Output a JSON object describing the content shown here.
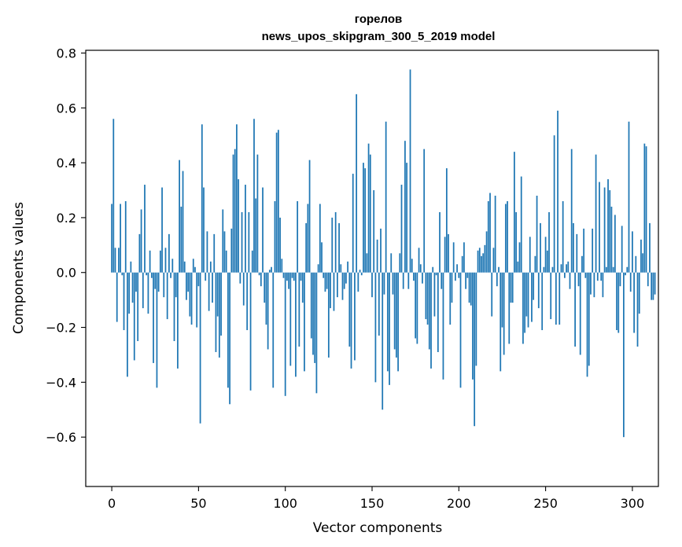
{
  "chart_data": {
    "type": "bar",
    "title_line1": "горелов",
    "title_line2": "news_upos_skipgram_300_5_2019 model",
    "xlabel": "Vector components",
    "ylabel": "Components values",
    "xlim": [
      -15,
      315
    ],
    "ylim": [
      -0.78,
      0.81
    ],
    "xticks": [
      0,
      50,
      100,
      150,
      200,
      250,
      300
    ],
    "yticks": [
      -0.6,
      -0.4,
      -0.2,
      0.0,
      0.2,
      0.4,
      0.6,
      0.8
    ],
    "ytick_labels": [
      "−0.6",
      "−0.4",
      "−0.2",
      "0.0",
      "0.2",
      "0.4",
      "0.6",
      "0.8"
    ],
    "bar_color": "#1f77b4",
    "values": [
      0.25,
      0.56,
      0.09,
      -0.18,
      0.09,
      0.25,
      -0.01,
      -0.21,
      0.26,
      -0.38,
      -0.15,
      0.04,
      -0.11,
      -0.32,
      -0.07,
      -0.25,
      0.14,
      0.23,
      -0.13,
      0.32,
      -0.01,
      -0.15,
      0.08,
      -0.02,
      -0.33,
      -0.06,
      -0.42,
      -0.07,
      0.08,
      0.31,
      -0.09,
      0.09,
      -0.17,
      0.14,
      -0.02,
      0.05,
      -0.25,
      -0.09,
      -0.35,
      0.41,
      0.24,
      0.37,
      0.04,
      -0.1,
      -0.07,
      -0.16,
      -0.19,
      0.05,
      0.02,
      -0.2,
      -0.05,
      -0.55,
      0.54,
      0.31,
      -0.03,
      0.15,
      -0.14,
      0.04,
      -0.11,
      0.14,
      -0.29,
      -0.16,
      -0.31,
      -0.23,
      0.23,
      0.15,
      0.08,
      -0.42,
      -0.48,
      0.16,
      0.43,
      0.45,
      0.54,
      0.34,
      -0.04,
      0.22,
      -0.12,
      0.32,
      -0.21,
      0.22,
      -0.43,
      0.08,
      0.56,
      0.27,
      0.43,
      -0.01,
      -0.05,
      0.31,
      -0.11,
      -0.19,
      -0.28,
      0.01,
      0.02,
      -0.42,
      0.26,
      0.51,
      0.52,
      0.2,
      0.05,
      -0.02,
      -0.45,
      -0.03,
      -0.06,
      -0.34,
      -0.02,
      -0.03,
      -0.38,
      0.26,
      -0.27,
      -0.03,
      -0.11,
      -0.36,
      0.18,
      0.25,
      0.41,
      -0.24,
      -0.3,
      -0.33,
      -0.44,
      0.03,
      0.25,
      0.11,
      -0.02,
      -0.07,
      -0.06,
      -0.31,
      -0.13,
      0.2,
      -0.14,
      0.22,
      -0.09,
      0.18,
      0.03,
      -0.1,
      -0.06,
      -0.04,
      0.04,
      -0.27,
      -0.35,
      0.36,
      -0.32,
      0.65,
      -0.07,
      0.01,
      -0.01,
      0.4,
      0.38,
      0.07,
      0.47,
      0.43,
      -0.09,
      0.3,
      -0.4,
      0.12,
      -0.23,
      0.16,
      -0.5,
      -0.08,
      0.55,
      -0.36,
      -0.41,
      0.07,
      -0.08,
      -0.28,
      -0.31,
      -0.36,
      0.07,
      0.32,
      -0.06,
      0.48,
      0.4,
      -0.06,
      0.74,
      0.05,
      -0.03,
      -0.24,
      -0.26,
      0.09,
      0.03,
      -0.04,
      0.45,
      -0.17,
      -0.19,
      -0.28,
      -0.35,
      0.02,
      -0.16,
      -0.01,
      -0.29,
      0.22,
      -0.06,
      -0.39,
      0.13,
      0.38,
      0.14,
      -0.19,
      -0.11,
      0.11,
      -0.03,
      0.03,
      -0.02,
      -0.42,
      0.06,
      0.11,
      -0.06,
      -0.02,
      -0.11,
      -0.12,
      -0.39,
      -0.56,
      -0.34,
      0.08,
      0.09,
      0.06,
      0.07,
      0.1,
      0.15,
      0.26,
      0.29,
      -0.16,
      0.09,
      0.28,
      -0.05,
      0.02,
      -0.36,
      -0.2,
      -0.3,
      0.25,
      0.26,
      -0.26,
      -0.11,
      -0.11,
      0.44,
      0.22,
      0.04,
      0.11,
      0.35,
      -0.26,
      -0.22,
      -0.16,
      -0.2,
      0.13,
      -0.18,
      -0.1,
      0.06,
      0.28,
      -0.13,
      0.18,
      -0.21,
      0.02,
      0.13,
      0.08,
      0.22,
      -0.17,
      0.02,
      0.5,
      -0.19,
      0.59,
      -0.19,
      0.03,
      0.26,
      -0.02,
      0.03,
      0.04,
      -0.06,
      0.45,
      0.18,
      -0.27,
      0.14,
      -0.05,
      -0.3,
      0.06,
      0.16,
      -0.02,
      -0.38,
      -0.34,
      -0.08,
      0.16,
      -0.09,
      0.43,
      -0.03,
      0.33,
      -0.03,
      -0.09,
      0.31,
      0.02,
      0.34,
      0.3,
      0.24,
      0.02,
      0.21,
      -0.21,
      -0.22,
      -0.05,
      0.17,
      -0.6,
      -0.01,
      0.02,
      0.55,
      -0.07,
      0.15,
      -0.22,
      0.06,
      -0.27,
      -0.15,
      0.12,
      0.07,
      0.47,
      0.46,
      -0.05,
      0.18,
      -0.1,
      -0.1,
      -0.08
    ]
  }
}
